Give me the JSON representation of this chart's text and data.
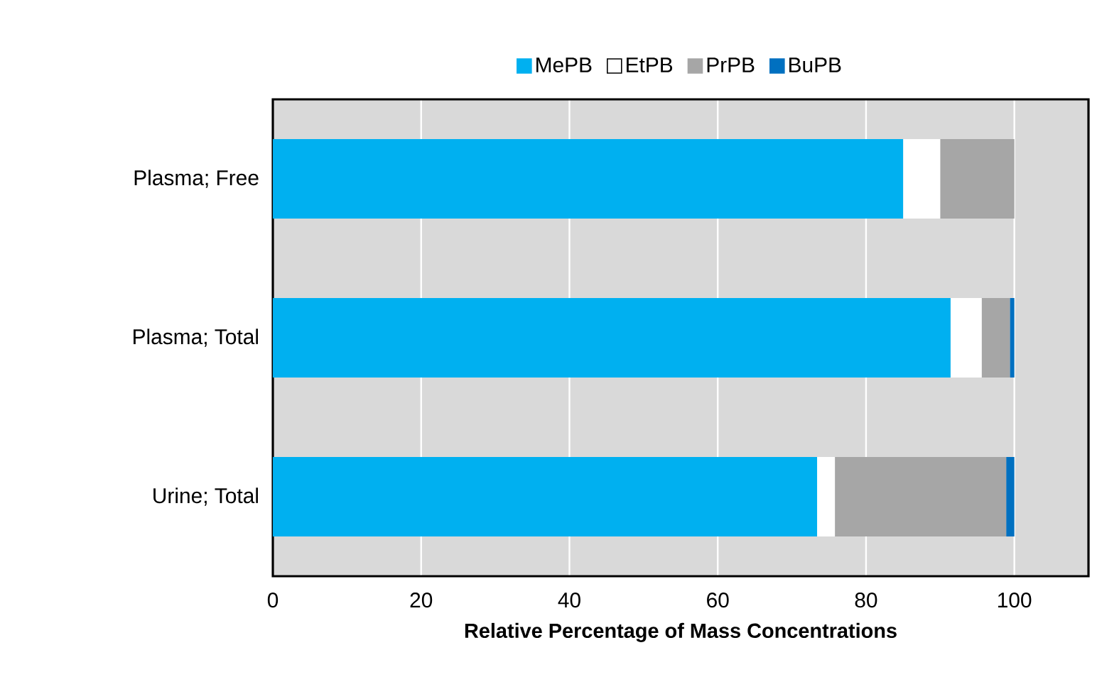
{
  "chart_data": {
    "type": "bar",
    "orientation": "horizontal",
    "stacked": true,
    "categories": [
      "Plasma; Free",
      "Plasma; Total",
      "Urine; Total"
    ],
    "series": [
      {
        "name": "MePB",
        "color": "#00b0f0",
        "values": [
          85,
          91.4,
          73.4
        ]
      },
      {
        "name": "EtPB",
        "color": "#ffffff",
        "values": [
          5,
          4.2,
          2.4
        ]
      },
      {
        "name": "PrPB",
        "color": "#a6a6a6",
        "values": [
          10,
          3.8,
          23.1
        ]
      },
      {
        "name": "BuPB",
        "color": "#0070c0",
        "values": [
          0,
          0.6,
          1.1
        ]
      }
    ],
    "xlabel": "Relative Percentage of Mass Concentrations",
    "xlim": [
      0,
      110
    ],
    "xticks": [
      0,
      20,
      40,
      60,
      80,
      100
    ],
    "grid": "x",
    "legend": "top"
  }
}
